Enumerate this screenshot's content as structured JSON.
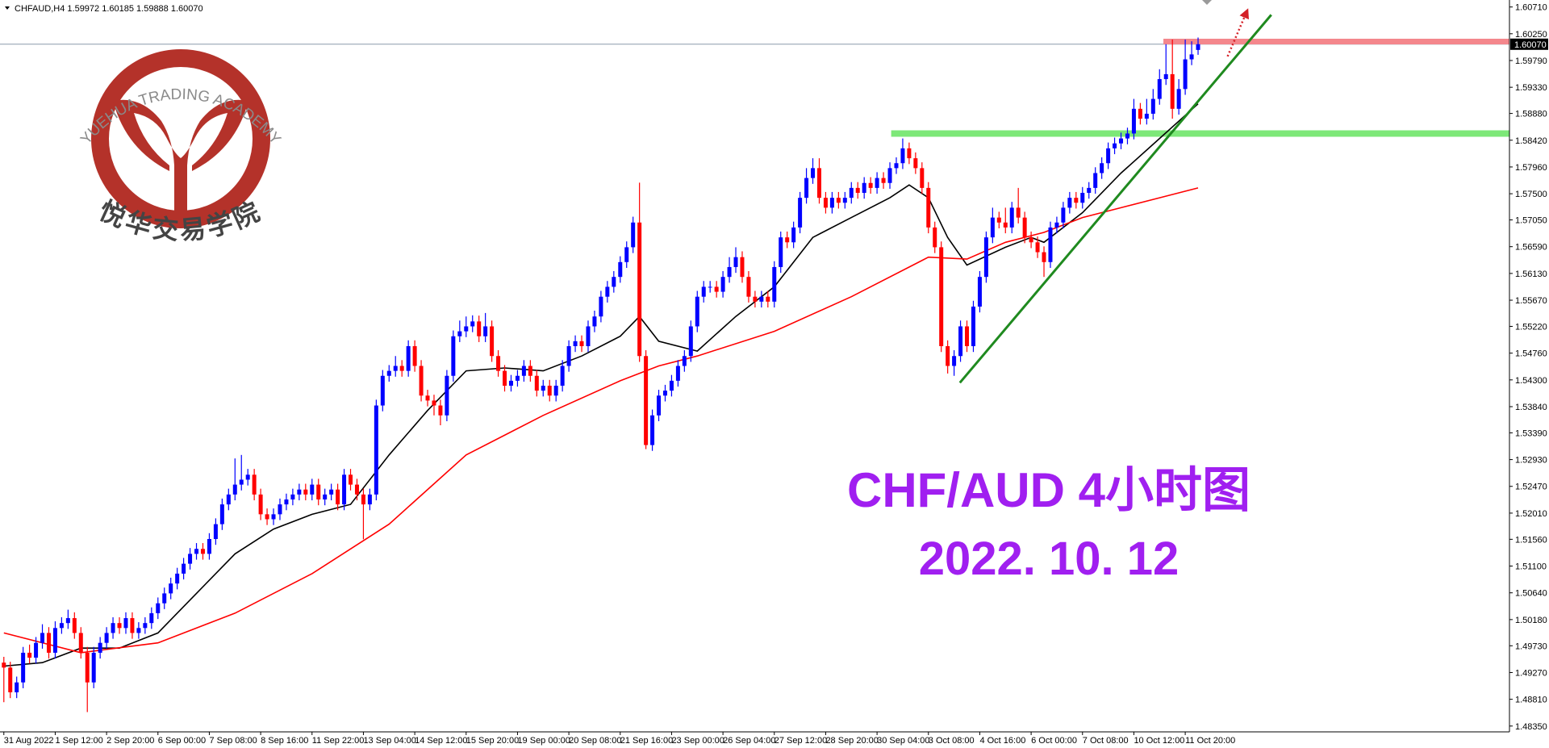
{
  "chart_data": {
    "type": "candlestick",
    "header": "CHFAUD,H4 1.59972 1.60185 1.59888 1.60070",
    "title": "CHF/AUD 4小时图",
    "subtitle": "2022. 10. 12",
    "up_color": "#0000ff",
    "down_color": "#ff0000",
    "grid": false,
    "xlim": [
      -0.6,
      234.5
    ],
    "ylim": [
      1.4825,
      1.6083
    ],
    "yticks": [
      {
        "value": 1.6071,
        "label": "1.60710"
      },
      {
        "value": 1.6025,
        "label": "1.60250"
      },
      {
        "value": 1.5979,
        "label": "1.59790"
      },
      {
        "value": 1.5933,
        "label": "1.59330"
      },
      {
        "value": 1.5888,
        "label": "1.58880"
      },
      {
        "value": 1.5842,
        "label": "1.58420"
      },
      {
        "value": 1.5796,
        "label": "1.57960"
      },
      {
        "value": 1.575,
        "label": "1.57500"
      },
      {
        "value": 1.5705,
        "label": "1.57050"
      },
      {
        "value": 1.5659,
        "label": "1.56590"
      },
      {
        "value": 1.5613,
        "label": "1.56130"
      },
      {
        "value": 1.5567,
        "label": "1.55670"
      },
      {
        "value": 1.5522,
        "label": "1.55220"
      },
      {
        "value": 1.5476,
        "label": "1.54760"
      },
      {
        "value": 1.543,
        "label": "1.54300"
      },
      {
        "value": 1.5384,
        "label": "1.53840"
      },
      {
        "value": 1.5339,
        "label": "1.53390"
      },
      {
        "value": 1.5293,
        "label": "1.52930"
      },
      {
        "value": 1.5247,
        "label": "1.52470"
      },
      {
        "value": 1.5201,
        "label": "1.52010"
      },
      {
        "value": 1.5156,
        "label": "1.51560"
      },
      {
        "value": 1.511,
        "label": "1.51100"
      },
      {
        "value": 1.5064,
        "label": "1.50640"
      },
      {
        "value": 1.5018,
        "label": "1.50180"
      },
      {
        "value": 1.4973,
        "label": "1.49730"
      },
      {
        "value": 1.4927,
        "label": "1.49270"
      },
      {
        "value": 1.4881,
        "label": "1.48810"
      },
      {
        "value": 1.4835,
        "label": "1.48350"
      }
    ],
    "current_price": {
      "value": 1.6007,
      "label": "1.60070",
      "color": "#8a9aab"
    },
    "categories": [
      "31 Aug 2022",
      null,
      null,
      null,
      null,
      null,
      null,
      null,
      "1 Sep 12:00",
      null,
      null,
      null,
      null,
      null,
      null,
      null,
      "2 Sep 20:00",
      null,
      null,
      null,
      null,
      null,
      null,
      null,
      "6 Sep 00:00",
      null,
      null,
      null,
      null,
      null,
      null,
      null,
      "7 Sep 08:00",
      null,
      null,
      null,
      null,
      null,
      null,
      null,
      "8 Sep 16:00",
      null,
      null,
      null,
      null,
      null,
      null,
      null,
      "11 Sep 22:00",
      null,
      null,
      null,
      null,
      null,
      null,
      null,
      "13 Sep 04:00",
      null,
      null,
      null,
      null,
      null,
      null,
      null,
      "14 Sep 12:00",
      null,
      null,
      null,
      null,
      null,
      null,
      null,
      "15 Sep 20:00",
      null,
      null,
      null,
      null,
      null,
      null,
      null,
      "19 Sep 00:00",
      null,
      null,
      null,
      null,
      null,
      null,
      null,
      "20 Sep 08:00",
      null,
      null,
      null,
      null,
      null,
      null,
      null,
      "21 Sep 16:00",
      null,
      null,
      null,
      null,
      null,
      null,
      null,
      "23 Sep 00:00",
      null,
      null,
      null,
      null,
      null,
      null,
      null,
      "26 Sep 04:00",
      null,
      null,
      null,
      null,
      null,
      null,
      null,
      "27 Sep 12:00",
      null,
      null,
      null,
      null,
      null,
      null,
      null,
      "28 Sep 20:00",
      null,
      null,
      null,
      null,
      null,
      null,
      null,
      "30 Sep 04:00",
      null,
      null,
      null,
      null,
      null,
      null,
      null,
      "3 Oct 08:00",
      null,
      null,
      null,
      null,
      null,
      null,
      null,
      "4 Oct 16:00",
      null,
      null,
      null,
      null,
      null,
      null,
      null,
      "6 Oct 00:00",
      null,
      null,
      null,
      null,
      null,
      null,
      null,
      "7 Oct 08:00",
      null,
      null,
      null,
      null,
      null,
      null,
      null,
      "10 Oct 12:00",
      null,
      null,
      null,
      null,
      null,
      null,
      null,
      "11 Oct 20:00",
      null,
      null
    ],
    "open": [
      1.4944,
      1.49355,
      1.4893,
      1.491,
      1.4961,
      1.49525,
      1.4978,
      1.4995,
      1.4961,
      1.50035,
      1.5012,
      1.50205,
      1.4995,
      1.4961,
      1.491,
      1.4961,
      1.4978,
      1.4995,
      1.5012,
      1.50035,
      1.50205,
      1.4995,
      1.50035,
      1.5012,
      1.5029,
      1.5046,
      1.5063,
      1.508,
      1.5097,
      1.5114,
      1.5131,
      1.51395,
      1.5131,
      1.51565,
      1.5182,
      1.5216,
      1.5233,
      1.525,
      1.52585,
      1.5267,
      1.5233,
      1.5199,
      1.51905,
      1.5199,
      1.5216,
      1.52245,
      1.5233,
      1.52415,
      1.5233,
      1.525,
      1.52245,
      1.5233,
      1.52415,
      1.5216,
      1.5267,
      1.525,
      1.5233,
      1.5216,
      1.5233,
      1.5386,
      1.5437,
      1.54455,
      1.5454,
      1.54455,
      1.5488,
      1.5454,
      1.5403,
      1.53945,
      1.5386,
      1.5369,
      1.5437,
      1.5505,
      1.55135,
      1.5522,
      1.55305,
      1.5505,
      1.5522,
      1.5471,
      1.54455,
      1.542,
      1.54285,
      1.5437,
      1.5454,
      1.5437,
      1.54115,
      1.542,
      1.5403,
      1.542,
      1.5454,
      1.5488,
      1.54965,
      1.5488,
      1.5522,
      1.5539,
      1.5573,
      1.559,
      1.5607,
      1.56325,
      1.5658,
      1.57005,
      1.5471,
      1.5318,
      1.5369,
      1.5403,
      1.54115,
      1.54285,
      1.5454,
      1.5471,
      1.5522,
      1.5573,
      1.559,
      1.559,
      1.55815,
      1.5607,
      1.5624,
      1.5641,
      1.5607,
      1.5573,
      1.55645,
      1.5573,
      1.55645,
      1.5624,
      1.5675,
      1.56665,
      1.5692,
      1.5743,
      1.5777,
      1.5794,
      1.5743,
      1.5726,
      1.5743,
      1.57345,
      1.5743,
      1.576,
      1.57515,
      1.57685,
      1.576,
      1.5777,
      1.57685,
      1.5794,
      1.58025,
      1.5828,
      1.5811,
      1.5794,
      1.576,
      1.5692,
      1.5658,
      1.5488,
      1.5454,
      1.5471,
      1.5522,
      1.5488,
      1.5556,
      1.5607,
      1.5675,
      1.5709,
      1.57005,
      1.5692,
      1.5726,
      1.5709,
      1.5675,
      1.56665,
      1.56495,
      1.56325,
      1.5692,
      1.57005,
      1.5726,
      1.5743,
      1.57345,
      1.57515,
      1.576,
      1.57855,
      1.58025,
      1.5828,
      1.58365,
      1.5845,
      1.58535,
      1.5896,
      1.5879,
      1.58875,
      1.5913,
      1.5947,
      1.59555,
      1.5896,
      1.593,
      1.5981,
      1.59972
    ],
    "high": [
      1.4954,
      1.49455,
      1.492,
      1.4971,
      1.4975,
      1.4988,
      1.501,
      1.5005,
      1.5015,
      1.5022,
      1.5035,
      1.50305,
      1.5005,
      1.4971,
      1.4971,
      1.4988,
      1.5005,
      1.5022,
      1.5022,
      1.50305,
      1.50305,
      1.50135,
      1.5022,
      1.5039,
      1.5056,
      1.5073,
      1.509,
      1.5107,
      1.5124,
      1.5141,
      1.51495,
      1.51495,
      1.51665,
      1.5192,
      1.5226,
      1.5243,
      1.5295,
      1.5301,
      1.5277,
      1.5277,
      1.5243,
      1.5209,
      1.5209,
      1.5226,
      1.52345,
      1.5243,
      1.52515,
      1.52515,
      1.526,
      1.526,
      1.5243,
      1.52515,
      1.52515,
      1.5277,
      1.5277,
      1.526,
      1.5243,
      1.5243,
      1.5396,
      1.5447,
      1.54555,
      1.5471,
      1.5464,
      1.5498,
      1.5498,
      1.5464,
      1.5413,
      1.54045,
      1.5396,
      1.5447,
      1.5515,
      1.5532,
      1.5539,
      1.5541,
      1.55405,
      1.5545,
      1.5532,
      1.5481,
      1.54555,
      1.54385,
      1.5447,
      1.5464,
      1.5464,
      1.5447,
      1.543,
      1.543,
      1.543,
      1.5464,
      1.5498,
      1.55065,
      1.55065,
      1.5532,
      1.5549,
      1.5583,
      1.56,
      1.5617,
      1.56425,
      1.5668,
      1.57105,
      1.5769,
      1.5481,
      1.5379,
      1.5413,
      1.54215,
      1.54385,
      1.5464,
      1.5481,
      1.5532,
      1.5583,
      1.56,
      1.56,
      1.56,
      1.5617,
      1.5641,
      1.5658,
      1.5651,
      1.5617,
      1.5583,
      1.5583,
      1.5583,
      1.5634,
      1.5685,
      1.5685,
      1.5702,
      1.5753,
      1.5794,
      1.5811,
      1.5811,
      1.5753,
      1.5753,
      1.5753,
      1.5753,
      1.577,
      1.577,
      1.57785,
      1.57785,
      1.5787,
      1.5787,
      1.5804,
      1.58125,
      1.5845,
      1.5838,
      1.5821,
      1.5804,
      1.577,
      1.5702,
      1.5668,
      1.5498,
      1.5481,
      1.5532,
      1.5532,
      1.5566,
      1.5617,
      1.5685,
      1.5726,
      1.5719,
      1.5726,
      1.5736,
      1.576,
      1.5719,
      1.5685,
      1.56765,
      1.56595,
      1.5702,
      1.57105,
      1.5736,
      1.5753,
      1.5753,
      1.57615,
      1.577,
      1.57955,
      1.58125,
      1.5838,
      1.58465,
      1.5855,
      1.58635,
      1.5913,
      1.5906,
      1.5913,
      1.593,
      1.5964,
      1.6007,
      1.6015,
      1.5947,
      1.6015,
      1.6012,
      1.60185
    ],
    "low": [
      1.4876,
      1.4883,
      1.4883,
      1.49,
      1.49425,
      1.49425,
      1.4968,
      1.4951,
      1.4951,
      1.49935,
      1.5002,
      1.4985,
      1.4951,
      1.4859,
      1.49,
      1.4951,
      1.4968,
      1.4985,
      1.49935,
      1.49935,
      1.4985,
      1.4985,
      1.49935,
      1.5002,
      1.5019,
      1.5036,
      1.5053,
      1.507,
      1.5087,
      1.5104,
      1.5121,
      1.5121,
      1.5121,
      1.51465,
      1.5172,
      1.5206,
      1.5223,
      1.524,
      1.52485,
      1.5223,
      1.5189,
      1.51805,
      1.51805,
      1.5189,
      1.5206,
      1.52145,
      1.5223,
      1.5223,
      1.5223,
      1.52145,
      1.52145,
      1.5223,
      1.5206,
      1.5206,
      1.524,
      1.5223,
      1.5156,
      1.5206,
      1.5223,
      1.5376,
      1.5427,
      1.54355,
      1.54355,
      1.54355,
      1.5444,
      1.5393,
      1.53845,
      1.5369,
      1.5352,
      1.5359,
      1.5427,
      1.5495,
      1.55035,
      1.5512,
      1.5495,
      1.5495,
      1.5461,
      1.54355,
      1.541,
      1.541,
      1.54185,
      1.5427,
      1.5427,
      1.54015,
      1.54015,
      1.5393,
      1.5393,
      1.541,
      1.5444,
      1.5478,
      1.5478,
      1.5478,
      1.5512,
      1.5529,
      1.5563,
      1.558,
      1.5597,
      1.56225,
      1.5648,
      1.5461,
      1.5311,
      1.5308,
      1.5359,
      1.5393,
      1.54015,
      1.54185,
      1.5444,
      1.5461,
      1.5512,
      1.5563,
      1.558,
      1.55715,
      1.55715,
      1.5597,
      1.5614,
      1.5597,
      1.5563,
      1.55545,
      1.55545,
      1.55545,
      1.55545,
      1.5614,
      1.56565,
      1.56565,
      1.5682,
      1.5733,
      1.5767,
      1.5733,
      1.5716,
      1.5716,
      1.57245,
      1.57245,
      1.5733,
      1.57415,
      1.57415,
      1.575,
      1.575,
      1.57585,
      1.57585,
      1.5784,
      1.57925,
      1.5801,
      1.5784,
      1.575,
      1.5682,
      1.5648,
      1.5478,
      1.5441,
      1.5437,
      1.5461,
      1.5478,
      1.5478,
      1.5546,
      1.5597,
      1.5665,
      1.56905,
      1.5682,
      1.5682,
      1.5699,
      1.5665,
      1.56565,
      1.56395,
      1.5607,
      1.56225,
      1.5682,
      1.56905,
      1.5716,
      1.57245,
      1.57245,
      1.57415,
      1.575,
      1.57755,
      1.57925,
      1.5818,
      1.58265,
      1.5835,
      1.58435,
      1.5869,
      1.5869,
      1.58775,
      1.5903,
      1.5937,
      1.5879,
      1.5886,
      1.592,
      1.5971,
      1.59888
    ],
    "close": [
      1.49355,
      1.4893,
      1.491,
      1.4961,
      1.49525,
      1.4978,
      1.4995,
      1.4961,
      1.50035,
      1.5012,
      1.50205,
      1.4995,
      1.4961,
      1.491,
      1.4961,
      1.4978,
      1.4995,
      1.5012,
      1.50035,
      1.50205,
      1.4995,
      1.50035,
      1.5012,
      1.5029,
      1.5046,
      1.5063,
      1.508,
      1.5097,
      1.5114,
      1.5131,
      1.51395,
      1.5131,
      1.51565,
      1.5182,
      1.5216,
      1.5233,
      1.525,
      1.52585,
      1.5267,
      1.5233,
      1.5199,
      1.51905,
      1.5199,
      1.5216,
      1.52245,
      1.5233,
      1.52415,
      1.5233,
      1.525,
      1.52245,
      1.5233,
      1.52415,
      1.5216,
      1.5267,
      1.525,
      1.5233,
      1.5216,
      1.5233,
      1.5386,
      1.5437,
      1.54455,
      1.5454,
      1.54455,
      1.5488,
      1.5454,
      1.5403,
      1.53945,
      1.5386,
      1.5369,
      1.5437,
      1.5505,
      1.55135,
      1.5522,
      1.55305,
      1.5505,
      1.5522,
      1.5471,
      1.54455,
      1.542,
      1.54285,
      1.5437,
      1.5454,
      1.5437,
      1.54115,
      1.542,
      1.5403,
      1.542,
      1.5454,
      1.5488,
      1.54965,
      1.5488,
      1.5522,
      1.5539,
      1.5573,
      1.559,
      1.5607,
      1.56325,
      1.5658,
      1.57005,
      1.5471,
      1.5318,
      1.5369,
      1.5403,
      1.54115,
      1.54285,
      1.5454,
      1.5471,
      1.5522,
      1.5573,
      1.559,
      1.559,
      1.55815,
      1.5607,
      1.5624,
      1.5641,
      1.5607,
      1.5573,
      1.55645,
      1.5573,
      1.55645,
      1.5624,
      1.5675,
      1.56665,
      1.5692,
      1.5743,
      1.5777,
      1.5794,
      1.5743,
      1.5726,
      1.5743,
      1.57345,
      1.5743,
      1.576,
      1.57515,
      1.57685,
      1.576,
      1.5777,
      1.57685,
      1.5794,
      1.58025,
      1.5828,
      1.5811,
      1.5794,
      1.576,
      1.5692,
      1.5658,
      1.5488,
      1.5454,
      1.5471,
      1.5522,
      1.5488,
      1.5556,
      1.5607,
      1.5675,
      1.5709,
      1.57005,
      1.5692,
      1.5726,
      1.5709,
      1.5675,
      1.56665,
      1.56495,
      1.56325,
      1.5692,
      1.57005,
      1.5726,
      1.5743,
      1.57345,
      1.57515,
      1.576,
      1.57855,
      1.58025,
      1.5828,
      1.58365,
      1.5845,
      1.58535,
      1.5896,
      1.5879,
      1.58875,
      1.5913,
      1.5947,
      1.59555,
      1.5896,
      1.593,
      1.5981,
      1.59895,
      1.6007
    ],
    "moving_averages": [
      {
        "color": "#000000",
        "x": [
          0,
          6,
          12,
          18,
          24,
          30,
          36,
          42,
          48,
          54,
          60,
          66,
          72,
          78,
          84,
          90,
          96,
          99,
          102,
          108,
          114,
          120,
          126,
          132,
          138,
          141,
          144,
          147,
          150,
          156,
          160,
          162,
          168,
          174,
          180,
          186
        ],
        "values": [
          1.4938,
          1.4944,
          1.4969,
          1.4969,
          1.4995,
          1.5063,
          1.5131,
          1.51735,
          1.5199,
          1.5216,
          1.5301,
          1.53775,
          1.54455,
          1.54506,
          1.54455,
          1.5471,
          1.5505,
          1.5539,
          1.54965,
          1.54795,
          1.5539,
          1.559,
          1.5675,
          1.5709,
          1.5743,
          1.57651,
          1.5743,
          1.5675,
          1.56274,
          1.5658,
          1.5675,
          1.56665,
          1.57175,
          1.57855,
          1.5845,
          1.59045
        ]
      },
      {
        "color": "#ff0000",
        "x": [
          0,
          12,
          24,
          36,
          48,
          60,
          72,
          84,
          96,
          102,
          108,
          120,
          132,
          144,
          150,
          156,
          162,
          168,
          174,
          180,
          186
        ],
        "values": [
          1.4995,
          1.4961,
          1.4978,
          1.5029,
          1.5097,
          1.5182,
          1.5301,
          1.5369,
          1.54285,
          1.5454,
          1.5471,
          1.55135,
          1.5573,
          1.5641,
          1.56376,
          1.56665,
          1.56835,
          1.5709,
          1.5726,
          1.5743,
          1.576
        ]
      }
    ],
    "resistance": {
      "price": 1.60116,
      "from": 180.6,
      "color": "#f4878c"
    },
    "support": {
      "price": 1.58535,
      "from": 138.2,
      "color": "#7de878"
    },
    "trendline": {
      "x": [
        148.9,
        197.4
      ],
      "y": [
        1.54251,
        1.60575
      ],
      "color": "#1f8a1f"
    },
    "arrow": {
      "x": [
        190.6,
        193.5
      ],
      "y": [
        1.59861,
        1.60609
      ],
      "color": "#d42027"
    }
  },
  "logo": {
    "arc": "YUEHUA TRADING ACADEMY",
    "name": "悦华交易学院"
  }
}
